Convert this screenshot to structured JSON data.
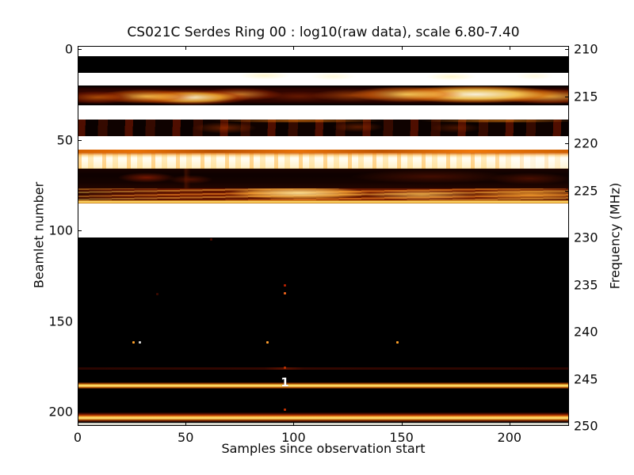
{
  "figure": {
    "title": "CS021C Serdes Ring 00 : log10(raw data), scale 6.80-7.40",
    "xlabel": "Samples since observation start",
    "ylabel_left": "Beamlet number",
    "ylabel_right": "Frequency (MHz)"
  },
  "chart_data": {
    "type": "heatmap",
    "title": "CS021C Serdes Ring 00 : log10(raw data), scale 6.80-7.40",
    "xlabel": "Samples since observation start",
    "ylabel": "Beamlet number",
    "ylabel_right": "Frequency (MHz)",
    "colormap": "hot",
    "scale_min": 6.8,
    "scale_max": 7.4,
    "x_ticks": [
      0,
      50,
      100,
      150,
      200
    ],
    "x_range": [
      0,
      228
    ],
    "beamlet_ticks": [
      0,
      50,
      100,
      150,
      200
    ],
    "beamlet_range": [
      0,
      209
    ],
    "frequency_ticks": [
      210,
      215,
      220,
      225,
      230,
      235,
      240,
      245,
      250
    ],
    "frequency_range": [
      210,
      250
    ],
    "grid": false,
    "bands": [
      {
        "b0": -2,
        "b1": 4,
        "style": "white",
        "intensity": "saturated"
      },
      {
        "b0": 4,
        "b1": 13,
        "style": "black",
        "intensity": "minimum"
      },
      {
        "b0": 13,
        "b1": 20,
        "style": "white-smudged",
        "intensity": "saturated"
      },
      {
        "b0": 20,
        "b1": 31,
        "style": "fire",
        "intensity": "high-variable"
      },
      {
        "b0": 31,
        "b1": 39,
        "style": "white",
        "intensity": "saturated"
      },
      {
        "b0": 39,
        "b1": 48,
        "style": "darkred",
        "intensity": "low-blotchy"
      },
      {
        "b0": 48,
        "b1": 55.5,
        "style": "white",
        "intensity": "saturated"
      },
      {
        "b0": 55.5,
        "b1": 57,
        "style": "orange-line",
        "intensity": "medium"
      },
      {
        "b0": 57,
        "b1": 66,
        "style": "bright",
        "intensity": "near-saturated"
      },
      {
        "b0": 66,
        "b1": 77,
        "style": "darkmaroon",
        "intensity": "very-low"
      },
      {
        "b0": 77,
        "b1": 83.5,
        "style": "fire2",
        "intensity": "high-variable"
      },
      {
        "b0": 83.5,
        "b1": 85,
        "style": "yellow-line",
        "intensity": "high"
      },
      {
        "b0": 85,
        "b1": 104,
        "style": "white",
        "intensity": "saturated"
      },
      {
        "b0": 104,
        "b1": 209,
        "style": "black",
        "intensity": "minimum"
      },
      {
        "b0": 175.5,
        "b1": 176.9,
        "style": "hline-darkred",
        "intensity": "faint-line"
      },
      {
        "b0": 183.8,
        "b1": 187.3,
        "style": "hline-yellow",
        "intensity": "bright-line"
      },
      {
        "b0": 200.4,
        "b1": 205.6,
        "style": "hline-bottom",
        "intensity": "bright-line"
      },
      {
        "b0": 206.3,
        "b1": 209,
        "style": "gray-row",
        "intensity": "high"
      }
    ],
    "points": [
      {
        "sample": 62,
        "beamlet": 105,
        "color": "#4a0c00"
      },
      {
        "sample": 96,
        "beamlet": 130.5,
        "color": "#b42000"
      },
      {
        "sample": 96,
        "beamlet": 134.5,
        "color": "#e8611a"
      },
      {
        "sample": 37,
        "beamlet": 135,
        "color": "#3a0900"
      },
      {
        "sample": 26,
        "beamlet": 162,
        "color": "#ffa028"
      },
      {
        "sample": 29,
        "beamlet": 162,
        "color": "#d8d8d8"
      },
      {
        "sample": 88,
        "beamlet": 162,
        "color": "#ff9d2e"
      },
      {
        "sample": 148,
        "beamlet": 162,
        "color": "#ffa028"
      },
      {
        "sample": 96,
        "beamlet": 175.8,
        "color": "#b83000"
      },
      {
        "sample": 96,
        "beamlet": 199,
        "color": "#c03000"
      }
    ],
    "annotation": {
      "text": "1",
      "sample": 96,
      "beamlet": 183,
      "color": "#ffffff"
    }
  }
}
